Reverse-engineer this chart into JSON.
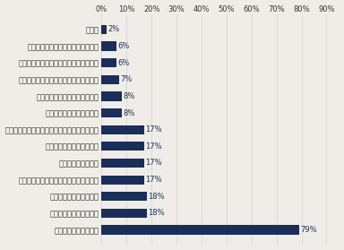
{
  "categories": [
    "その他",
    "業務のアウトソーシングを活用する",
    "一度退職した社員の出戻り採用を行なう",
    "定年退職者（高齢者）の再雇用を行なう",
    "しばらくこのままで状況を見る",
    "グループ内異動で補充する",
    "業務分担などを見直し、現状の人員で乗り切る",
    "来春の新卒社員入社を待つ",
    "社内異動で補充する",
    "アルバイト・パート社員の採用を行なう",
    "派遣社員の採用を行なう",
    "契約社員の採用を行なう",
    "正社員の採用を行なう"
  ],
  "values": [
    2,
    6,
    6,
    7,
    8,
    8,
    17,
    17,
    17,
    17,
    18,
    18,
    79
  ],
  "bar_color": "#1a2e5a",
  "value_color": "#1a2e5a",
  "background_color": "#f0ede8",
  "axis_top_values": [
    0,
    10,
    20,
    30,
    40,
    50,
    60,
    70,
    80,
    90
  ],
  "xlim": [
    0,
    95
  ],
  "label_fontsize": 6.0,
  "value_fontsize": 6.0,
  "tick_fontsize": 6.0,
  "bar_height": 0.55
}
